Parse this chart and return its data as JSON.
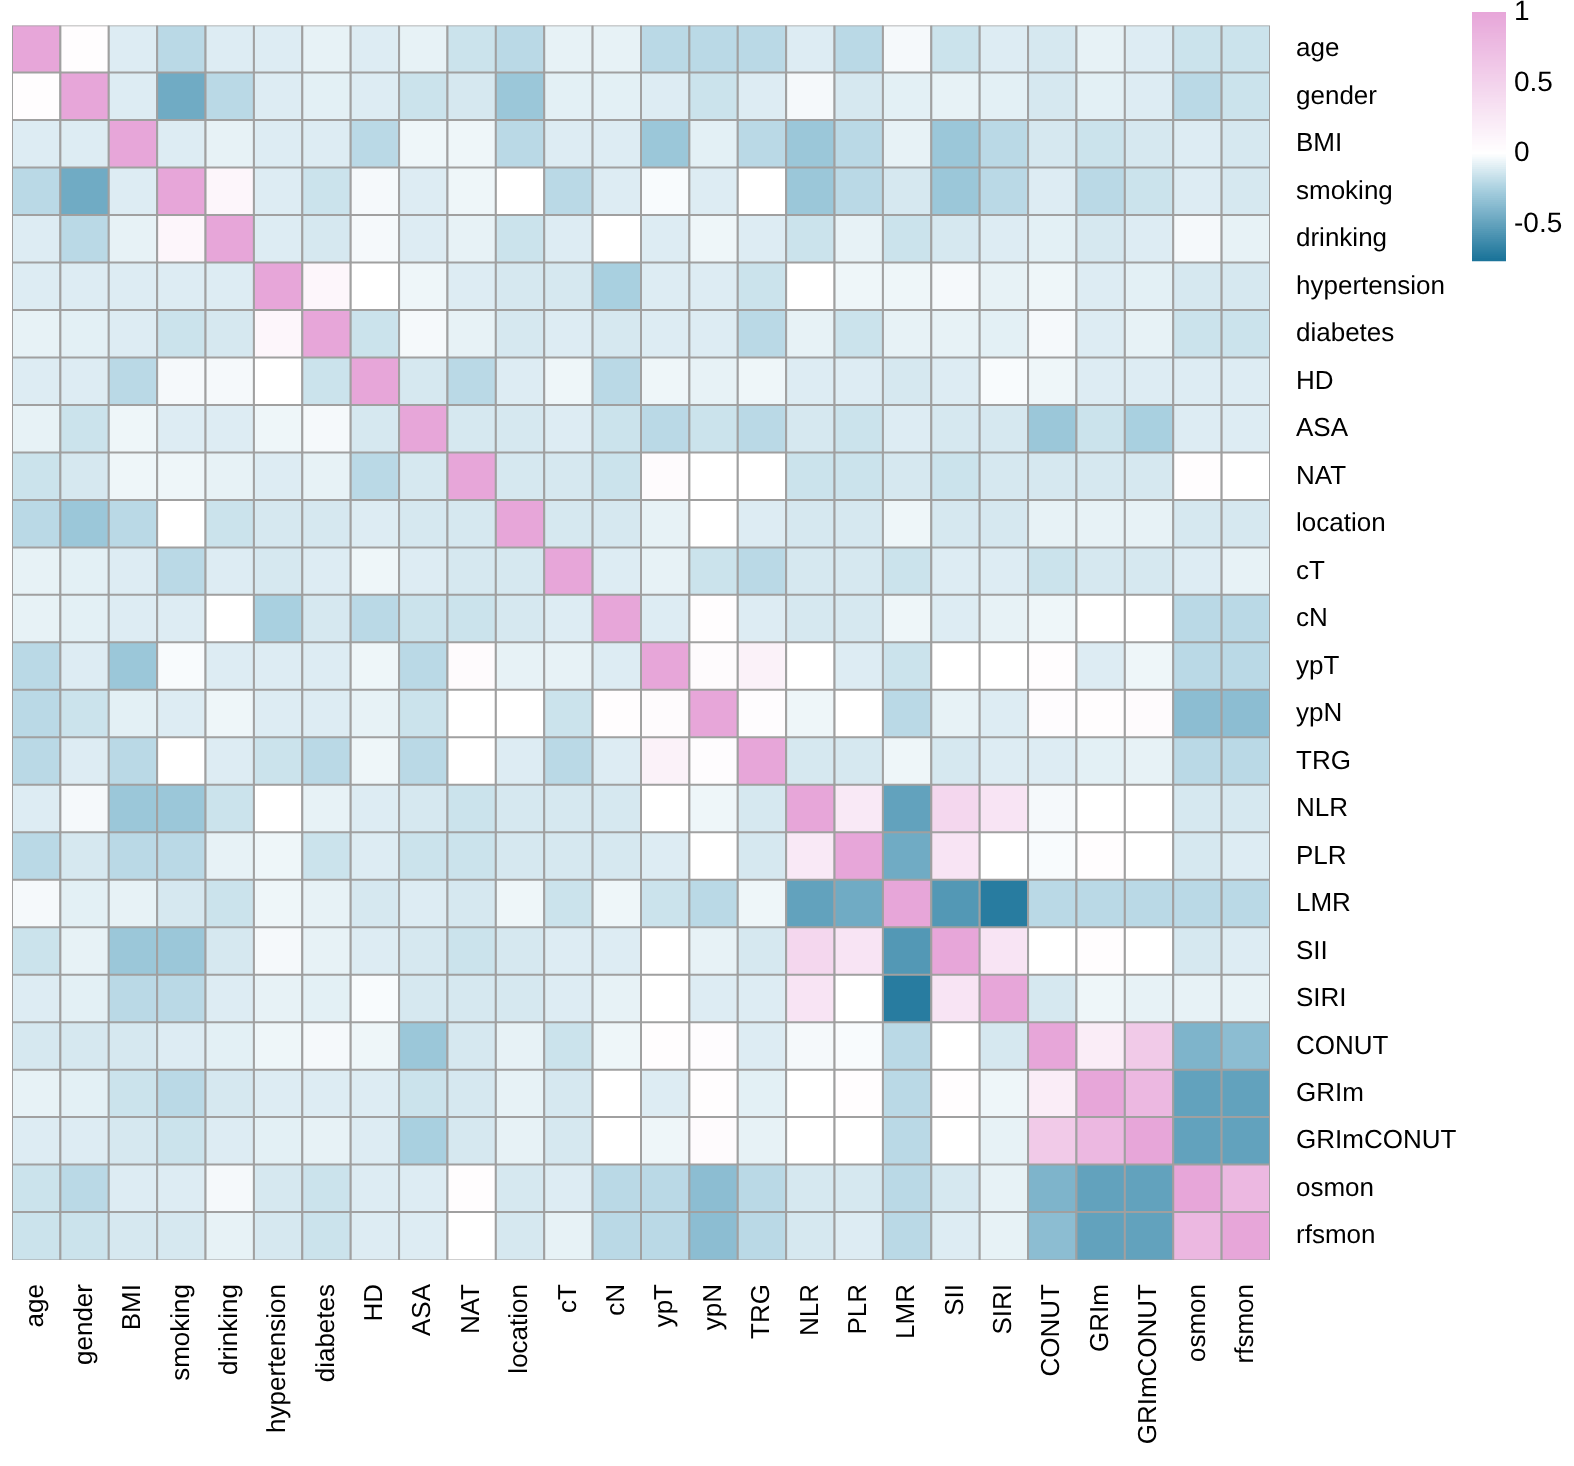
{
  "chart_data": {
    "type": "heatmap",
    "categories": [
      "age",
      "gender",
      "BMI",
      "smoking",
      "drinking",
      "hypertension",
      "diabetes",
      "HD",
      "ASA",
      "NAT",
      "location",
      "cT",
      "cN",
      "ypT",
      "ypN",
      "TRG",
      "NLR",
      "PLR",
      "LMR",
      "SII",
      "SIRI",
      "CONUT",
      "GRIm",
      "GRImCONUT",
      "osmon",
      "rfsmon"
    ],
    "y_categories": [
      "age",
      "gender",
      "BMI",
      "smoking",
      "drinking",
      "hypertension",
      "diabetes",
      "HD",
      "ASA",
      "NAT",
      "location",
      "cT",
      "cN",
      "ypT",
      "ypN",
      "TRG",
      "NLR",
      "PLR",
      "LMR",
      "SII",
      "SIRI",
      "CONUT",
      "GRIm",
      "GRImCONUT",
      "osmon",
      "rfsmon"
    ],
    "cells": [
      [
        1,
        0.02,
        -0.1,
        -0.2,
        -0.1,
        -0.1,
        -0.07,
        -0.1,
        -0.07,
        -0.15,
        -0.2,
        -0.07,
        -0.07,
        -0.2,
        -0.2,
        -0.2,
        -0.1,
        -0.2,
        -0.03,
        -0.15,
        -0.1,
        -0.12,
        -0.07,
        -0.1,
        -0.15,
        -0.15
      ],
      [
        0.02,
        1,
        -0.1,
        -0.45,
        -0.2,
        -0.1,
        -0.08,
        -0.1,
        -0.15,
        -0.12,
        -0.3,
        -0.08,
        -0.08,
        -0.1,
        -0.15,
        -0.1,
        -0.03,
        -0.12,
        -0.08,
        -0.07,
        -0.08,
        -0.12,
        -0.08,
        -0.1,
        -0.2,
        -0.15
      ],
      [
        -0.1,
        -0.1,
        1,
        -0.1,
        -0.07,
        -0.1,
        -0.1,
        -0.2,
        -0.05,
        -0.05,
        -0.2,
        -0.1,
        -0.1,
        -0.3,
        -0.08,
        -0.2,
        -0.3,
        -0.2,
        -0.07,
        -0.3,
        -0.2,
        -0.12,
        -0.15,
        -0.12,
        -0.1,
        -0.12
      ],
      [
        -0.2,
        -0.45,
        -0.1,
        1,
        0.1,
        -0.1,
        -0.15,
        -0.03,
        -0.1,
        -0.05,
        0,
        -0.2,
        -0.1,
        -0.02,
        -0.1,
        0,
        -0.3,
        -0.2,
        -0.12,
        -0.3,
        -0.2,
        -0.1,
        -0.2,
        -0.15,
        -0.1,
        -0.12
      ],
      [
        -0.1,
        -0.2,
        -0.07,
        0.1,
        1,
        -0.1,
        -0.12,
        -0.03,
        -0.1,
        -0.07,
        -0.15,
        -0.1,
        0,
        -0.1,
        -0.05,
        -0.1,
        -0.15,
        -0.07,
        -0.15,
        -0.12,
        -0.1,
        -0.08,
        -0.12,
        -0.1,
        -0.03,
        -0.07
      ],
      [
        -0.1,
        -0.1,
        -0.1,
        -0.1,
        -0.1,
        1,
        0.1,
        0,
        -0.05,
        -0.1,
        -0.12,
        -0.12,
        -0.25,
        -0.1,
        -0.1,
        -0.15,
        0,
        -0.05,
        -0.05,
        -0.03,
        -0.07,
        -0.05,
        -0.1,
        -0.08,
        -0.12,
        -0.12
      ],
      [
        -0.07,
        -0.08,
        -0.1,
        -0.15,
        -0.12,
        0.1,
        1,
        -0.15,
        -0.03,
        -0.07,
        -0.12,
        -0.1,
        -0.12,
        -0.1,
        -0.1,
        -0.2,
        -0.07,
        -0.15,
        -0.07,
        -0.07,
        -0.08,
        -0.03,
        -0.1,
        -0.07,
        -0.15,
        -0.15
      ],
      [
        -0.1,
        -0.1,
        -0.2,
        -0.03,
        -0.03,
        0,
        -0.15,
        1,
        -0.12,
        -0.2,
        -0.1,
        -0.05,
        -0.2,
        -0.05,
        -0.07,
        -0.05,
        -0.1,
        -0.1,
        -0.12,
        -0.1,
        -0.02,
        -0.05,
        -0.1,
        -0.1,
        -0.1,
        -0.1
      ],
      [
        -0.07,
        -0.15,
        -0.05,
        -0.1,
        -0.1,
        -0.05,
        -0.03,
        -0.12,
        1,
        -0.12,
        -0.12,
        -0.1,
        -0.15,
        -0.2,
        -0.15,
        -0.2,
        -0.12,
        -0.15,
        -0.1,
        -0.12,
        -0.12,
        -0.3,
        -0.15,
        -0.25,
        -0.1,
        -0.1
      ],
      [
        -0.15,
        -0.12,
        -0.05,
        -0.05,
        -0.07,
        -0.1,
        -0.07,
        -0.2,
        -0.12,
        1,
        -0.12,
        -0.12,
        -0.15,
        0.05,
        0,
        0,
        -0.15,
        -0.15,
        -0.12,
        -0.15,
        -0.12,
        -0.12,
        -0.12,
        -0.12,
        0.02,
        0
      ],
      [
        -0.2,
        -0.3,
        -0.2,
        0,
        -0.15,
        -0.12,
        -0.12,
        -0.1,
        -0.12,
        -0.12,
        1,
        -0.12,
        -0.12,
        -0.07,
        0,
        -0.1,
        -0.12,
        -0.12,
        -0.05,
        -0.12,
        -0.12,
        -0.07,
        -0.07,
        -0.07,
        -0.12,
        -0.12
      ],
      [
        -0.07,
        -0.08,
        -0.1,
        -0.2,
        -0.1,
        -0.12,
        -0.1,
        -0.05,
        -0.1,
        -0.12,
        -0.12,
        1,
        -0.1,
        -0.07,
        -0.15,
        -0.2,
        -0.12,
        -0.12,
        -0.15,
        -0.1,
        -0.1,
        -0.15,
        -0.12,
        -0.12,
        -0.1,
        -0.07
      ],
      [
        -0.07,
        -0.08,
        -0.1,
        -0.1,
        0,
        -0.25,
        -0.12,
        -0.2,
        -0.15,
        -0.15,
        -0.12,
        -0.1,
        1,
        -0.1,
        0.02,
        -0.1,
        -0.12,
        -0.12,
        -0.05,
        -0.1,
        -0.07,
        -0.05,
        0,
        0,
        -0.2,
        -0.2
      ],
      [
        -0.2,
        -0.1,
        -0.3,
        -0.02,
        -0.1,
        -0.1,
        -0.1,
        -0.05,
        -0.2,
        0.05,
        -0.07,
        -0.07,
        -0.1,
        1,
        0.05,
        0.15,
        0,
        -0.1,
        -0.15,
        0,
        0,
        0.02,
        -0.1,
        -0.05,
        -0.2,
        -0.2
      ],
      [
        -0.2,
        -0.15,
        -0.08,
        -0.1,
        -0.05,
        -0.1,
        -0.1,
        -0.07,
        -0.15,
        0,
        0,
        -0.15,
        0.02,
        0.05,
        1,
        0.03,
        -0.05,
        0,
        -0.2,
        -0.07,
        -0.1,
        0.03,
        0.02,
        0.05,
        -0.35,
        -0.35
      ],
      [
        -0.2,
        -0.1,
        -0.2,
        0,
        -0.1,
        -0.15,
        -0.2,
        -0.05,
        -0.2,
        0,
        -0.1,
        -0.2,
        -0.1,
        0.15,
        0.03,
        1,
        -0.12,
        -0.12,
        -0.05,
        -0.12,
        -0.1,
        -0.1,
        -0.08,
        -0.07,
        -0.2,
        -0.2
      ],
      [
        -0.1,
        -0.03,
        -0.3,
        -0.3,
        -0.15,
        0,
        -0.07,
        -0.1,
        -0.12,
        -0.15,
        -0.12,
        -0.12,
        -0.12,
        0,
        -0.05,
        -0.12,
        1,
        0.25,
        -0.5,
        0.45,
        0.3,
        -0.03,
        0,
        0,
        -0.12,
        -0.12
      ],
      [
        -0.2,
        -0.12,
        -0.2,
        -0.2,
        -0.07,
        -0.05,
        -0.15,
        -0.1,
        -0.15,
        -0.15,
        -0.12,
        -0.12,
        -0.12,
        -0.1,
        0,
        -0.12,
        0.25,
        1,
        -0.45,
        0.3,
        0,
        -0.02,
        0.02,
        0,
        -0.12,
        -0.1
      ],
      [
        -0.03,
        -0.08,
        -0.07,
        -0.12,
        -0.15,
        -0.05,
        -0.07,
        -0.12,
        -0.1,
        -0.12,
        -0.05,
        -0.15,
        -0.05,
        -0.15,
        -0.2,
        -0.05,
        -0.5,
        -0.45,
        1,
        -0.55,
        -0.7,
        -0.2,
        -0.2,
        -0.2,
        -0.2,
        -0.2
      ],
      [
        -0.15,
        -0.07,
        -0.3,
        -0.3,
        -0.12,
        -0.03,
        -0.07,
        -0.1,
        -0.12,
        -0.15,
        -0.12,
        -0.1,
        -0.1,
        0,
        -0.07,
        -0.12,
        0.45,
        0.3,
        -0.55,
        1,
        0.3,
        0,
        0.02,
        0,
        -0.12,
        -0.1
      ],
      [
        -0.1,
        -0.08,
        -0.2,
        -0.2,
        -0.1,
        -0.07,
        -0.08,
        -0.02,
        -0.12,
        -0.12,
        -0.12,
        -0.1,
        -0.07,
        0,
        -0.1,
        -0.1,
        0.3,
        0,
        -0.7,
        0.3,
        1,
        -0.12,
        -0.05,
        -0.07,
        -0.07,
        -0.07
      ],
      [
        -0.12,
        -0.12,
        -0.12,
        -0.1,
        -0.08,
        -0.05,
        -0.03,
        -0.05,
        -0.3,
        -0.12,
        -0.07,
        -0.15,
        -0.05,
        0.02,
        0.03,
        -0.1,
        -0.03,
        -0.02,
        -0.2,
        0,
        -0.12,
        1,
        0.2,
        0.6,
        -0.4,
        -0.35
      ],
      [
        -0.07,
        -0.08,
        -0.15,
        -0.2,
        -0.12,
        -0.1,
        -0.1,
        -0.1,
        -0.15,
        -0.12,
        -0.07,
        -0.12,
        0,
        -0.1,
        0.02,
        -0.08,
        0,
        0.02,
        -0.2,
        0.02,
        -0.05,
        0.2,
        1,
        0.8,
        -0.5,
        -0.5
      ],
      [
        -0.1,
        -0.1,
        -0.12,
        -0.15,
        -0.1,
        -0.08,
        -0.07,
        -0.1,
        -0.25,
        -0.12,
        -0.07,
        -0.12,
        0,
        -0.05,
        0.05,
        -0.07,
        0,
        0,
        -0.2,
        0,
        -0.07,
        0.6,
        0.8,
        1,
        -0.5,
        -0.5
      ],
      [
        -0.15,
        -0.2,
        -0.1,
        -0.1,
        -0.03,
        -0.12,
        -0.15,
        -0.1,
        -0.1,
        0.02,
        -0.12,
        -0.1,
        -0.2,
        -0.2,
        -0.35,
        -0.2,
        -0.12,
        -0.12,
        -0.2,
        -0.12,
        -0.07,
        -0.4,
        -0.5,
        -0.5,
        1,
        0.8
      ],
      [
        -0.15,
        -0.15,
        -0.12,
        -0.12,
        -0.07,
        -0.12,
        -0.15,
        -0.1,
        -0.1,
        0,
        -0.12,
        -0.07,
        -0.2,
        -0.2,
        -0.35,
        -0.2,
        -0.12,
        -0.1,
        -0.2,
        -0.1,
        -0.07,
        -0.35,
        -0.5,
        -0.5,
        0.8,
        1
      ]
    ],
    "clim": [
      -0.75,
      1
    ],
    "cticks": [
      1,
      0.5,
      0,
      -0.5
    ]
  }
}
